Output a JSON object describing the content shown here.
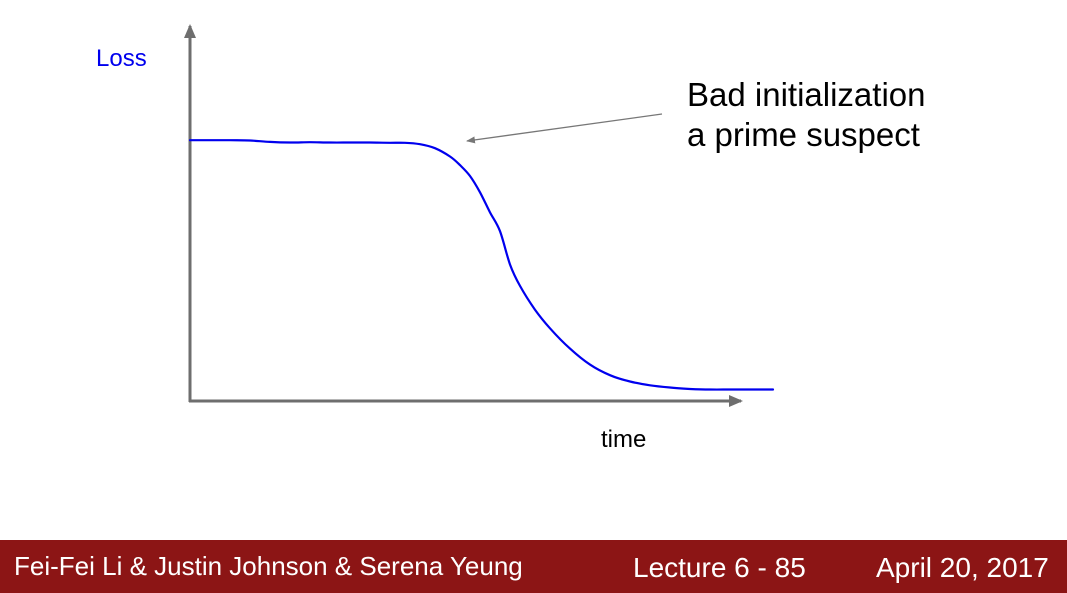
{
  "chart_data": {
    "type": "line",
    "ylabel": "Loss",
    "xlabel": "time",
    "x": [
      0,
      20,
      40,
      60,
      80,
      100,
      120,
      140,
      160,
      180,
      200,
      215,
      230,
      245,
      260,
      270,
      280,
      290,
      300,
      310,
      320,
      330,
      345,
      360,
      380,
      400,
      420,
      440,
      460,
      480,
      500,
      520,
      540,
      560,
      583
    ],
    "y": [
      0.911,
      0.911,
      0.911,
      0.91,
      0.905,
      0.903,
      0.904,
      0.903,
      0.903,
      0.903,
      0.902,
      0.902,
      0.897,
      0.883,
      0.854,
      0.824,
      0.786,
      0.729,
      0.659,
      0.593,
      0.477,
      0.402,
      0.319,
      0.254,
      0.183,
      0.127,
      0.09,
      0.068,
      0.055,
      0.047,
      0.042,
      0.04,
      0.04,
      0.04,
      0.04
    ],
    "xlim": [
      0,
      583
    ],
    "ylim": [
      0,
      1.31
    ],
    "series_color": "#0000ee",
    "axis_color": "#6e6e6e",
    "annotation_color": "#777777",
    "ylabel_color": "#0000ee",
    "grid": false
  },
  "annotation": {
    "line1": "Bad initialization",
    "line2": "a prime suspect"
  },
  "footer": {
    "authors": "Fei-Fei Li & Justin Johnson & Serena Yeung",
    "lecture": "Lecture 6 - 85",
    "date": "April 20, 2017",
    "background": "#8c1515"
  }
}
